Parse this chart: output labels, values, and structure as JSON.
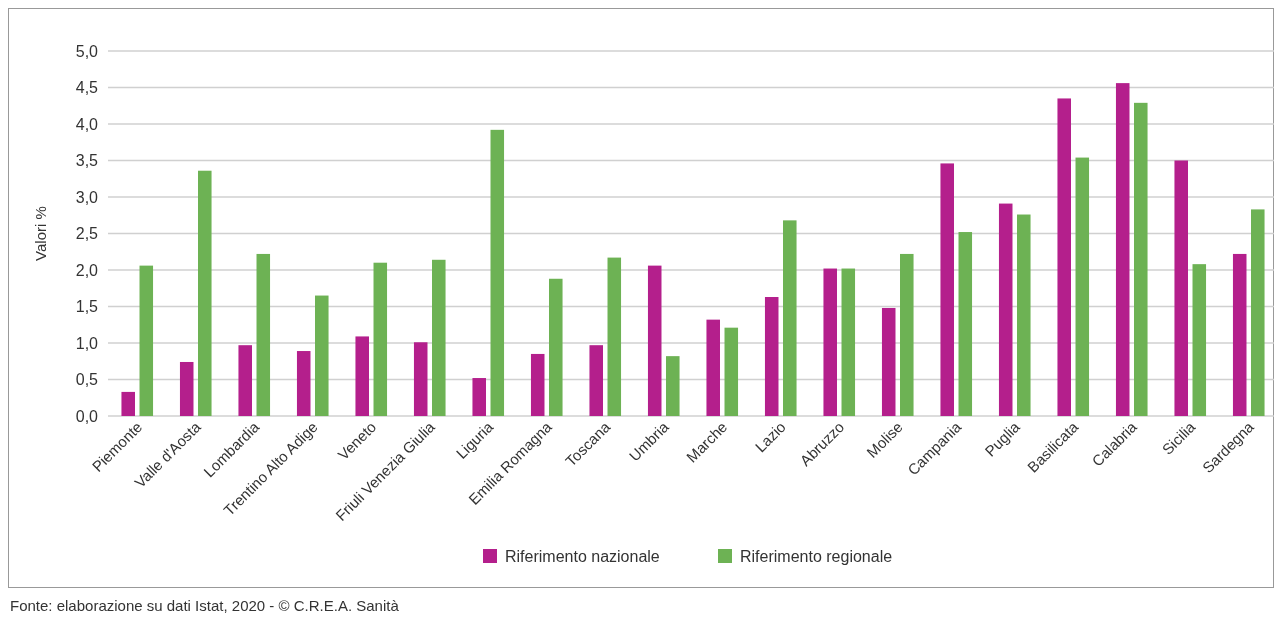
{
  "chart_data": {
    "type": "bar",
    "ylabel": "Valori %",
    "categories": [
      "Piemonte",
      "Valle d'Aosta",
      "Lombardia",
      "Trentino Alto Adige",
      "Veneto",
      "Friuli Venezia Giulia",
      "Liguria",
      "Emilia Romagna",
      "Toscana",
      "Umbria",
      "Marche",
      "Lazio",
      "Abruzzo",
      "Molise",
      "Campania",
      "Puglia",
      "Basilicata",
      "Calabria",
      "Sicilia",
      "Sardegna"
    ],
    "series": [
      {
        "name": "Riferimento nazionale",
        "color": "#b41f8c",
        "values": [
          0.33,
          0.74,
          0.97,
          0.89,
          1.09,
          1.01,
          0.52,
          0.85,
          0.97,
          2.06,
          1.32,
          1.63,
          2.02,
          1.48,
          3.46,
          2.91,
          4.35,
          4.56,
          3.5,
          2.22
        ]
      },
      {
        "name": "Riferimento regionale",
        "color": "#6db254",
        "values": [
          2.06,
          3.36,
          2.22,
          1.65,
          2.1,
          2.14,
          3.92,
          1.88,
          2.17,
          0.82,
          1.21,
          2.68,
          2.02,
          2.22,
          2.52,
          2.76,
          3.54,
          4.29,
          2.08,
          2.83
        ]
      }
    ],
    "ylim": [
      0,
      5
    ],
    "yticks": [
      {
        "value": 0,
        "label": "0,0"
      },
      {
        "value": 0.5,
        "label": "0,5"
      },
      {
        "value": 1,
        "label": "1,0"
      },
      {
        "value": 1.5,
        "label": "1,5"
      },
      {
        "value": 2,
        "label": "2,0"
      },
      {
        "value": 2.5,
        "label": "2,5"
      },
      {
        "value": 3,
        "label": "3,0"
      },
      {
        "value": 3.5,
        "label": "3,5"
      },
      {
        "value": 4,
        "label": "4,0"
      },
      {
        "value": 4.5,
        "label": "4,5"
      },
      {
        "value": 5,
        "label": "5,0"
      }
    ],
    "grid": "y",
    "legend": "bottom",
    "annotations": [
      "Fonte: elaborazione su dati Istat, 2020 - © C.R.E.A. Sanità"
    ]
  }
}
